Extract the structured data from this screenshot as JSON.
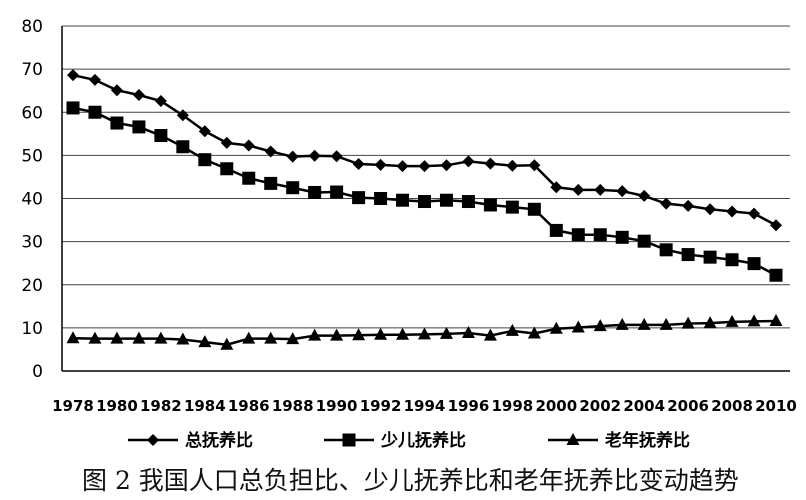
{
  "chart_data": {
    "type": "line",
    "caption": "图 2  我国人口总负担比、少儿抚养比和老年抚养比变动趋势",
    "ylim": [
      0,
      80
    ],
    "yticks": [
      0,
      10,
      20,
      30,
      40,
      50,
      60,
      70,
      80
    ],
    "grid": true,
    "legend_position": "bottom",
    "x": [
      1978,
      1979,
      1980,
      1981,
      1982,
      1983,
      1984,
      1985,
      1986,
      1987,
      1988,
      1989,
      1990,
      1991,
      1992,
      1993,
      1994,
      1995,
      1996,
      1997,
      1998,
      1999,
      2000,
      2001,
      2002,
      2003,
      2004,
      2005,
      2006,
      2007,
      2008,
      2009,
      2010
    ],
    "x_tick_labels": [
      "1978",
      "1980",
      "1982",
      "1984",
      "1986",
      "1988",
      "1990",
      "1992",
      "1994",
      "1996",
      "1998",
      "2000",
      "2002",
      "2004",
      "2006",
      "2008",
      "2010"
    ],
    "series": [
      {
        "name": "总抚养比",
        "marker": "diamond",
        "color": "#000000",
        "values": [
          68.6,
          67.5,
          65.1,
          64.0,
          62.6,
          59.3,
          55.6,
          52.9,
          52.3,
          50.9,
          49.7,
          49.9,
          49.8,
          48.0,
          47.8,
          47.5,
          47.5,
          47.7,
          48.6,
          48.1,
          47.6,
          47.7,
          42.6,
          42.0,
          42.0,
          41.7,
          40.6,
          38.8,
          38.3,
          37.5,
          37.0,
          36.5,
          33.8
        ]
      },
      {
        "name": "少儿抚养比",
        "marker": "square",
        "color": "#000000",
        "values": [
          61.0,
          60.0,
          57.5,
          56.6,
          54.6,
          52.0,
          49.0,
          46.9,
          44.7,
          43.5,
          42.5,
          41.4,
          41.5,
          40.2,
          40.0,
          39.6,
          39.3,
          39.6,
          39.3,
          38.5,
          38.0,
          37.5,
          32.6,
          31.6,
          31.6,
          31.0,
          30.1,
          28.1,
          27.0,
          26.4,
          25.8,
          24.9,
          22.2
        ]
      },
      {
        "name": "老年抚养比",
        "marker": "triangle",
        "color": "#000000",
        "values": [
          7.6,
          7.5,
          7.5,
          7.5,
          7.5,
          7.3,
          6.7,
          6.1,
          7.5,
          7.5,
          7.4,
          8.2,
          8.2,
          8.3,
          8.4,
          8.4,
          8.5,
          8.6,
          8.8,
          8.2,
          9.3,
          8.7,
          9.8,
          10.1,
          10.4,
          10.7,
          10.7,
          10.7,
          11.0,
          11.1,
          11.4,
          11.5,
          11.6
        ]
      }
    ]
  }
}
